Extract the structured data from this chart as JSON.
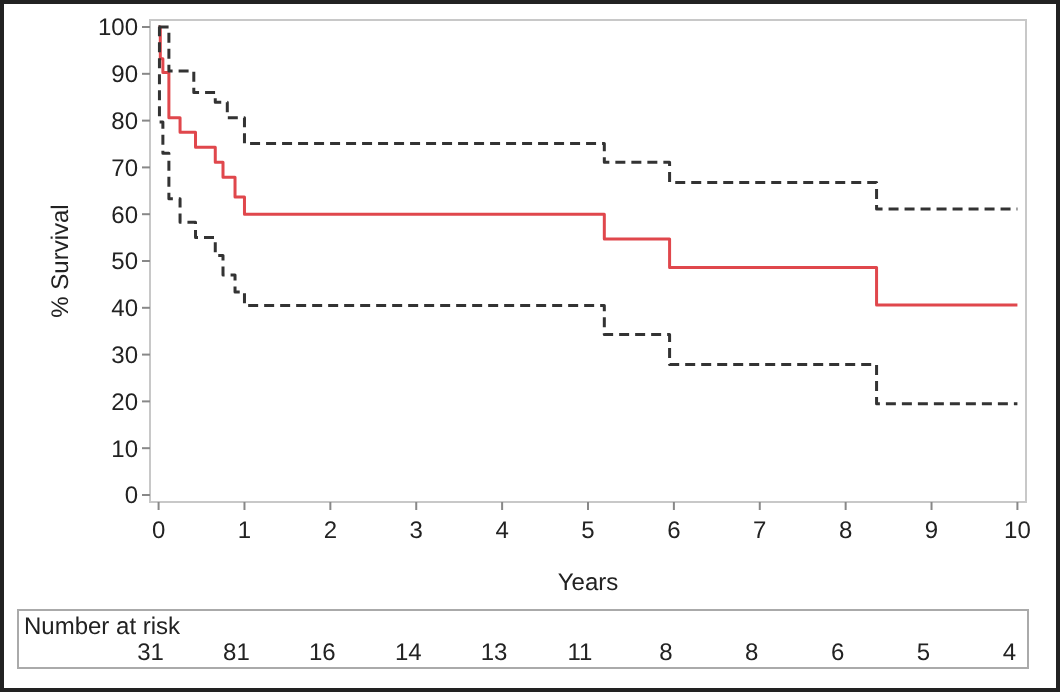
{
  "chart_data": {
    "type": "step",
    "xlabel": "Years",
    "ylabel": "% Survival",
    "xlim": [
      -0.1,
      10.1
    ],
    "xticks": [
      0,
      1,
      2,
      3,
      4,
      5,
      6,
      7,
      8,
      9,
      10
    ],
    "ylim": [
      -1.5,
      101.5
    ],
    "yticks": [
      0,
      10,
      20,
      30,
      40,
      50,
      60,
      70,
      80,
      90,
      100
    ],
    "grid": false,
    "marker": "none",
    "series": [
      {
        "color": "#e0474c",
        "line_style": "solid",
        "x": [
          0,
          0.02,
          0.05,
          0.12,
          0.25,
          0.43,
          0.66,
          0.75,
          0.89,
          1.0,
          5.19,
          5.95,
          8.36,
          10
        ],
        "values": [
          100,
          93.2,
          90.3,
          80.6,
          77.5,
          74.3,
          71.1,
          67.9,
          63.7,
          60.0,
          54.7,
          48.6,
          40.6,
          40.6
        ]
      },
      {
        "color": "#333333",
        "line_style": "dashed",
        "x": [
          0,
          0.12,
          0.41,
          0.66,
          0.8,
          1.0,
          5.19,
          5.95,
          8.36,
          10
        ],
        "values": [
          100,
          90.6,
          86,
          83.9,
          80.6,
          75.1,
          71.1,
          66.8,
          61.1,
          61.1
        ]
      },
      {
        "color": "#333333",
        "line_style": "dashed",
        "x": [
          0,
          0.01,
          0.05,
          0.12,
          0.25,
          0.43,
          0.66,
          0.75,
          0.89,
          1.0,
          5.19,
          5.95,
          8.36,
          10
        ],
        "values": [
          100,
          79.7,
          73,
          63.3,
          58.3,
          55,
          51.2,
          47,
          43.4,
          40.5,
          34.3,
          27.9,
          19.5,
          19.5
        ]
      }
    ],
    "annotations": [
      "Number at risk",
      "31",
      "81",
      "16",
      "14",
      "13",
      "11",
      "8",
      "8",
      "6",
      "5",
      "4"
    ]
  }
}
